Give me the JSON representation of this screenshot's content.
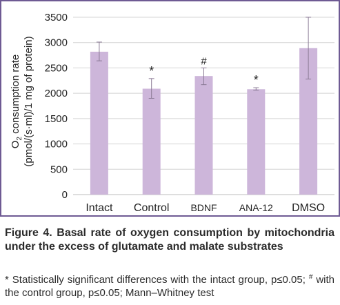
{
  "chart_data": {
    "type": "bar",
    "categories": [
      "Intact",
      "Control",
      "BDNF",
      "ANA-12",
      "DMSO"
    ],
    "values": [
      2820,
      2090,
      2340,
      2080,
      2890
    ],
    "errors": [
      [
        2640,
        3010
      ],
      [
        1900,
        2290
      ],
      [
        2170,
        2500
      ],
      [
        2060,
        2110
      ],
      [
        2280,
        3500
      ]
    ],
    "markers": [
      "",
      "*",
      "#",
      "*",
      ""
    ],
    "ylabel_line1": "O",
    "ylabel_sub": "2",
    "ylabel_line1_rest": " consumption rate",
    "ylabel_line2": "(pmol/(s·ml)/1 mg of protein)",
    "ylim": [
      0,
      3500
    ],
    "yticks": [
      0,
      500,
      1000,
      1500,
      2000,
      2500,
      3000,
      3500
    ],
    "grid": true,
    "legend": "none",
    "bar_color": "#cdb6da",
    "error_color": "#8a7a95",
    "grid_color": "#d4d4d4",
    "frame_color": "#6e5a93"
  },
  "caption": {
    "title": "Figure 4. Basal rate of oxygen consumption by mitochondria under the excess of glutamate and malate substrates",
    "note_star": "*",
    "note_part1": " Statistically significant differences with the intact group, p≤0.05; ",
    "note_hash": "#",
    "note_part2": " with the control group, p≤0.05; Mann–Whitney test"
  }
}
